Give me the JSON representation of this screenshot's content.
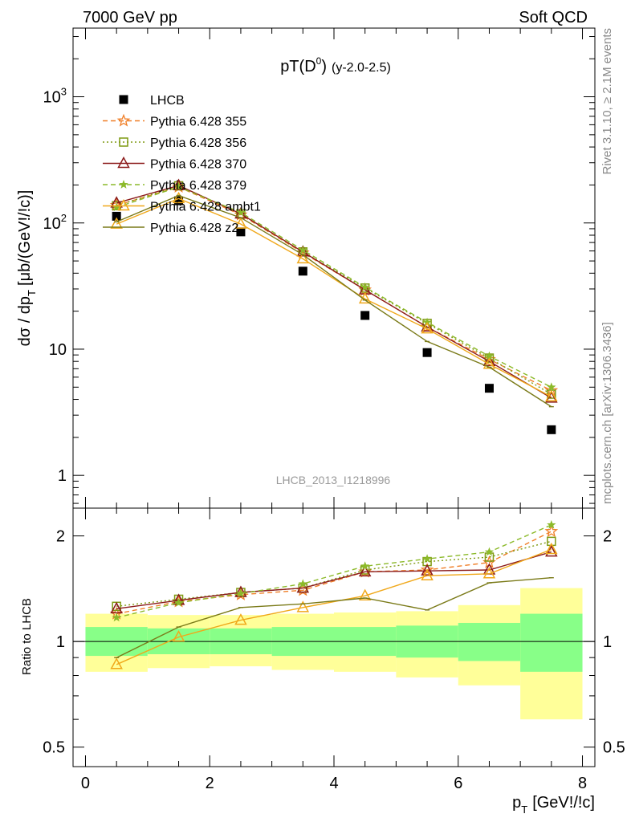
{
  "header": {
    "left": "7000 GeV pp",
    "right": "Soft QCD",
    "side_rivet": "Rivet 3.1.10, ≥ 2.1M events",
    "side_mcplots": "mcplots.cern.ch [arXiv:1306.3436]",
    "analysis_tag": "LHCB_2013_I1218996"
  },
  "colors": {
    "LHCB": "#000000",
    "Pythia 6.428 355": "#f07f28",
    "Pythia 6.428 356": "#7f9a12",
    "Pythia 6.428 370": "#8b1a1a",
    "Pythia 6.428 379": "#8cba2a",
    "Pythia 6.428 ambt1": "#f0a81a",
    "Pythia 6.428 z2": "#7a7a18",
    "band_inner": "#88ff88",
    "band_outer": "#ffff99"
  },
  "chart_data": [
    {
      "type": "scatter",
      "title_main": "pT(D",
      "title_sup": "0",
      "title_close": ")",
      "title_sub": "(y-2.0-2.5)",
      "ylabel": "dσ / dp",
      "ylabel_sub": "T",
      "ylabel_unit": "[μb/(GeV!/!c)]",
      "yscale": "log",
      "ylim": [
        0.55,
        3500
      ],
      "xlim": [
        -0.2,
        8.2
      ],
      "grid": false,
      "legend_position": "top-left",
      "ytick_labels": [
        {
          "value": 1,
          "label": "1"
        },
        {
          "value": 10,
          "label": "10"
        },
        {
          "value": 100,
          "label": "10",
          "sup": "2"
        },
        {
          "value": 1000,
          "label": "10",
          "sup": "3"
        }
      ],
      "x": [
        0.5,
        1.5,
        2.5,
        3.5,
        4.5,
        5.5,
        6.5,
        7.5
      ],
      "series": [
        {
          "name": "LHCB",
          "style": "data",
          "values": [
            113,
            150,
            85,
            41.5,
            18.5,
            9.4,
            4.9,
            2.3
          ]
        },
        {
          "name": "Pythia 6.428 355",
          "style": "dashed",
          "marker": "star-open",
          "values": [
            138,
            193,
            116,
            58,
            29.5,
            15,
            8.3,
            4.7
          ]
        },
        {
          "name": "Pythia 6.428 356",
          "style": "dotted",
          "marker": "square-open",
          "values": [
            137,
            197,
            118,
            59,
            30.5,
            16,
            8.5,
            4.4
          ]
        },
        {
          "name": "Pythia 6.428 370",
          "style": "solid",
          "marker": "triangle-open",
          "values": [
            144,
            198,
            118,
            59,
            29.5,
            15,
            8,
            4.1
          ]
        },
        {
          "name": "Pythia 6.428 379",
          "style": "dashed",
          "marker": "star-filled",
          "values": [
            133,
            193,
            121,
            61,
            31,
            16.3,
            8.8,
            5
          ]
        },
        {
          "name": "Pythia 6.428 ambt1",
          "style": "solid",
          "marker": "triangle-open",
          "values": [
            98,
            156,
            98,
            52,
            25,
            14.5,
            7.6,
            4.2
          ]
        },
        {
          "name": "Pythia 6.428 z2",
          "style": "solid",
          "marker": "none",
          "values": [
            102,
            165,
            110,
            56,
            24.5,
            11.5,
            7.2,
            3.5
          ]
        }
      ]
    },
    {
      "type": "line",
      "ylabel": "Ratio to LHCB",
      "xlabel": "p",
      "xlabel_sub": "T",
      "xlabel_unit": "[GeV!/!c]",
      "yscale": "log",
      "ylim": [
        0.44,
        2.4
      ],
      "xlim": [
        -0.2,
        8.2
      ],
      "xticks": [
        0,
        2,
        4,
        6,
        8
      ],
      "ytick_labels": [
        {
          "value": 0.5,
          "label": "0.5"
        },
        {
          "value": 1,
          "label": "1"
        },
        {
          "value": 2,
          "label": "2"
        }
      ],
      "x": [
        0.5,
        1.5,
        2.5,
        3.5,
        4.5,
        5.5,
        6.5,
        7.5
      ],
      "bins": [
        [
          0,
          1
        ],
        [
          1,
          2
        ],
        [
          2,
          3
        ],
        [
          3,
          4
        ],
        [
          4,
          5
        ],
        [
          5,
          6
        ],
        [
          6,
          7
        ],
        [
          7,
          8
        ]
      ],
      "band_inner": [
        [
          0.91,
          1.1
        ],
        [
          0.92,
          1.09
        ],
        [
          0.92,
          1.09
        ],
        [
          0.91,
          1.1
        ],
        [
          0.91,
          1.1
        ],
        [
          0.9,
          1.11
        ],
        [
          0.88,
          1.13
        ],
        [
          0.82,
          1.2
        ]
      ],
      "band_outer": [
        [
          0.82,
          1.2
        ],
        [
          0.84,
          1.19
        ],
        [
          0.85,
          1.19
        ],
        [
          0.83,
          1.2
        ],
        [
          0.82,
          1.21
        ],
        [
          0.79,
          1.22
        ],
        [
          0.75,
          1.27
        ],
        [
          0.6,
          1.42
        ]
      ],
      "reference": 1,
      "series": [
        {
          "name": "Pythia 6.428 355",
          "values": [
            1.2,
            1.3,
            1.36,
            1.4,
            1.58,
            1.6,
            1.68,
            2.06
          ]
        },
        {
          "name": "Pythia 6.428 356",
          "values": [
            1.26,
            1.32,
            1.38,
            1.42,
            1.6,
            1.69,
            1.74,
            1.93
          ]
        },
        {
          "name": "Pythia 6.428 370",
          "values": [
            1.24,
            1.31,
            1.38,
            1.42,
            1.58,
            1.59,
            1.6,
            1.8
          ]
        },
        {
          "name": "Pythia 6.428 379",
          "values": [
            1.17,
            1.29,
            1.37,
            1.46,
            1.64,
            1.72,
            1.8,
            2.15
          ]
        },
        {
          "name": "Pythia 6.428 ambt1",
          "values": [
            0.86,
            1.03,
            1.15,
            1.25,
            1.35,
            1.54,
            1.56,
            1.83
          ]
        },
        {
          "name": "Pythia 6.428 z2",
          "values": [
            0.9,
            1.1,
            1.25,
            1.28,
            1.33,
            1.23,
            1.47,
            1.52
          ]
        }
      ]
    }
  ]
}
